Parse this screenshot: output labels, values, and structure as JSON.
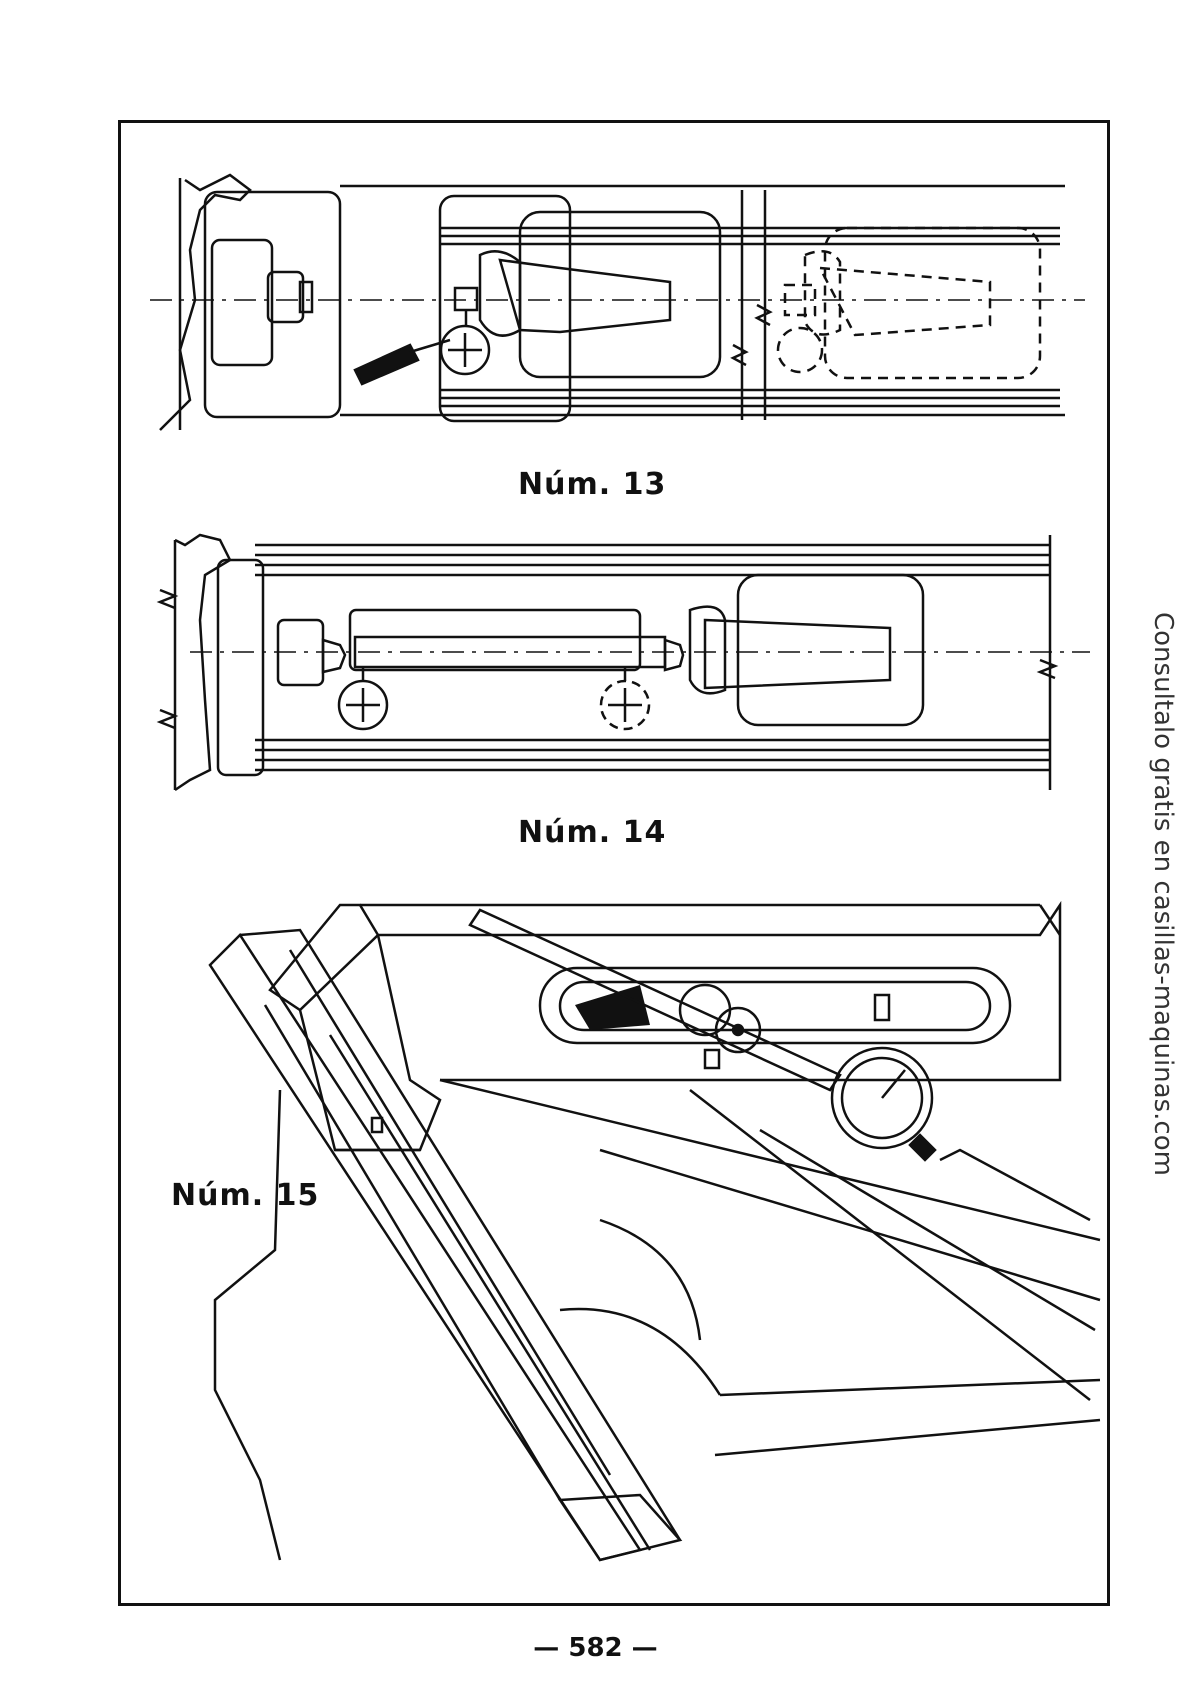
{
  "figures": [
    {
      "caption": "Núm. 13"
    },
    {
      "caption": "Núm. 14"
    },
    {
      "caption": "Núm. 15"
    }
  ],
  "side_note": "Consultalo gratis en casillas-maquinas.com",
  "page_number": "— 582 —"
}
